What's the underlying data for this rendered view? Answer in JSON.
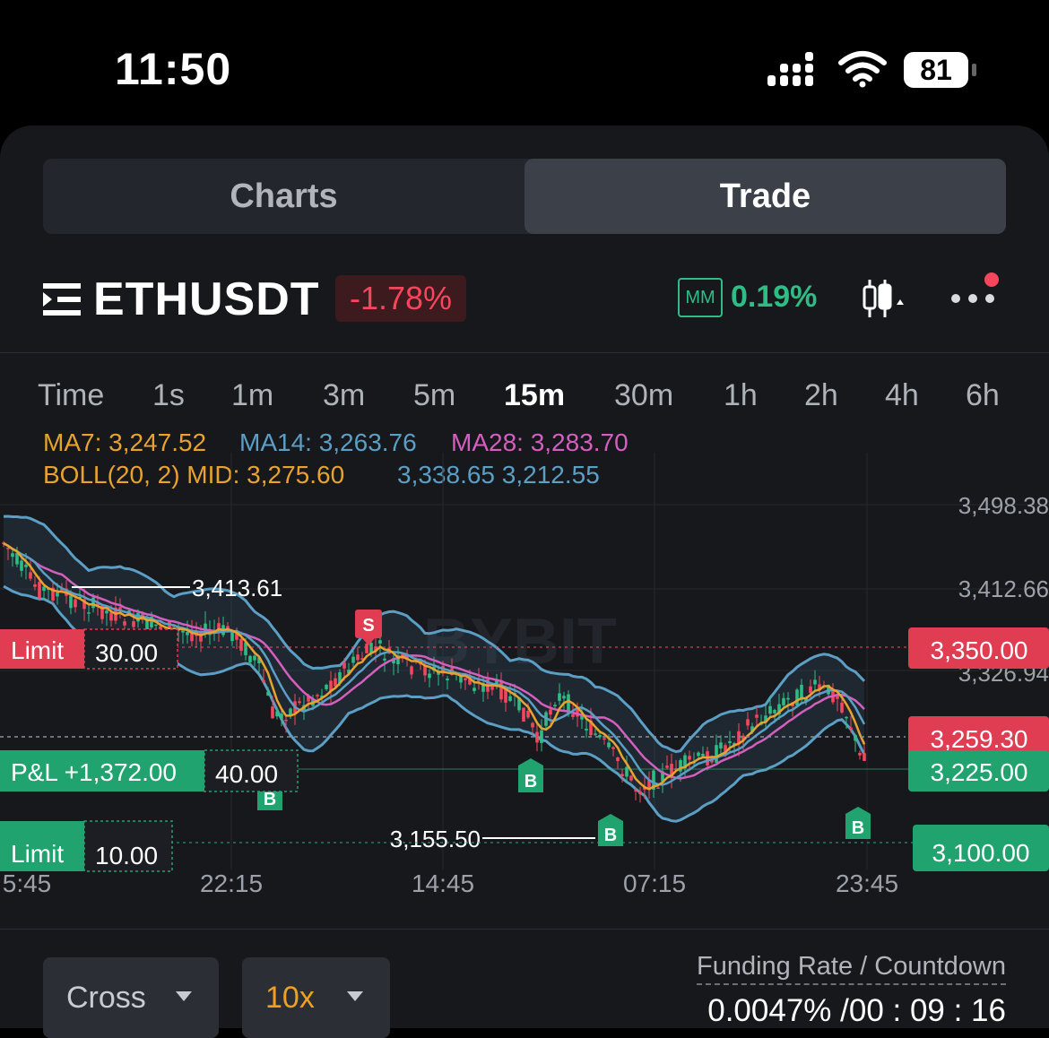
{
  "status_bar": {
    "time": "11:50",
    "battery": "81"
  },
  "tabs": {
    "charts": "Charts",
    "trade": "Trade",
    "active": "Trade"
  },
  "symbol": {
    "name": "ETHUSDT",
    "change": "-1.78%",
    "mm_badge": "MM",
    "mm_value": "0.19%"
  },
  "timeframes": {
    "items": [
      "Time",
      "1s",
      "1m",
      "3m",
      "5m",
      "15m",
      "30m",
      "1h",
      "2h",
      "4h",
      "6h"
    ],
    "active": "15m"
  },
  "indicators": {
    "ma7": "MA7: 3,247.52",
    "ma14": "MA14: 3,263.76",
    "ma28": "MA28: 3,283.70",
    "boll_mid": "BOLL(20, 2) MID: 3,275.60",
    "boll_bands": "3,338.65 3,212.55"
  },
  "colors": {
    "ma7": "#e8a32e",
    "ma14": "#5b9fc6",
    "ma28": "#d35fbf",
    "up": "#2ebd85",
    "down": "#f6465d",
    "boll": "#5b9fc6"
  },
  "chart_data": {
    "type": "candlestick",
    "y_ticks": [
      "3,498.38",
      "3,412.66",
      "3,326.94"
    ],
    "x_ticks": [
      "5:45",
      "22:15",
      "14:45",
      "07:15",
      "23:45"
    ],
    "high_marker": "3,413.61",
    "low_marker": "3,155.50",
    "watermark": "BYBIT",
    "trade_markers": [
      "S",
      "B",
      "B",
      "B",
      "B"
    ],
    "orders": {
      "limit_sell": {
        "label": "Limit",
        "qty": "30.00",
        "price": "3,350.00"
      },
      "position": {
        "label": "P&L +1,372.00",
        "qty": "40.00",
        "price": "3,225.00"
      },
      "limit_buy": {
        "label": "Limit",
        "qty": "10.00",
        "price": "3,100.00"
      },
      "last_price": "3,259.30"
    }
  },
  "controls": {
    "margin_mode": "Cross",
    "leverage": "10x",
    "funding_label": "Funding Rate / Countdown",
    "funding_value": "0.0047% /00 : 09 : 16"
  }
}
